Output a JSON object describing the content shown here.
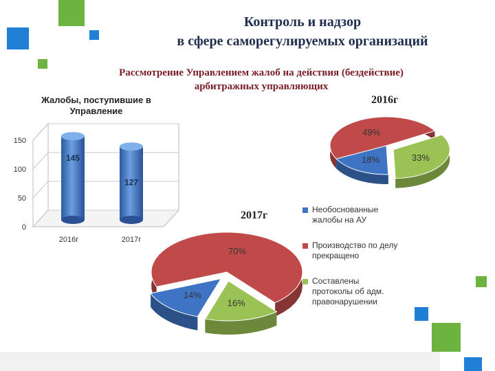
{
  "header": {
    "title_line1": "Контроль и надзор",
    "title_line2": "в сфере саморегулируемых организаций",
    "subtitle_line1": "Рассмотрение Управлением жалоб на действия (бездействие)",
    "subtitle_line2": "арбитражных управляющих"
  },
  "colors": {
    "blue": "#3f74c4",
    "red": "#c04a4a",
    "green": "#9bc255",
    "deco_green": "#6db33f",
    "deco_blue": "#1e7fd4"
  },
  "chart_data": [
    {
      "type": "bar",
      "title": "Жалобы, поступившие в Управление",
      "categories": [
        "2016г",
        "2017г"
      ],
      "values": [
        145,
        127
      ],
      "ylim": [
        0,
        150
      ],
      "yticks": [
        "0",
        "50",
        "100",
        "150"
      ],
      "grid": true
    },
    {
      "type": "pie",
      "title": "2016г",
      "labels": [
        "Необоснованные жалобы на АУ",
        "Производство по делу прекращено",
        "Составлены протоколы об адм. правонарушении"
      ],
      "values": [
        18,
        49,
        33
      ],
      "value_labels": [
        "18%",
        "49%",
        "33%"
      ]
    },
    {
      "type": "pie",
      "title": "2017г",
      "labels": [
        "Необоснованные жалобы на АУ",
        "Производство по делу прекращено",
        "Составлены протоколы об адм. правонарушении"
      ],
      "values": [
        14,
        70,
        16
      ],
      "value_labels": [
        "14%",
        "70%",
        "16%"
      ]
    }
  ],
  "legend": [
    {
      "label": "Необоснованные жалобы на АУ",
      "color": "#3f74c4"
    },
    {
      "label": "Производство по делу прекращено",
      "color": "#c04a4a"
    },
    {
      "label": "Составлены протоколы об адм. правонарушении",
      "color": "#9bc255"
    }
  ]
}
